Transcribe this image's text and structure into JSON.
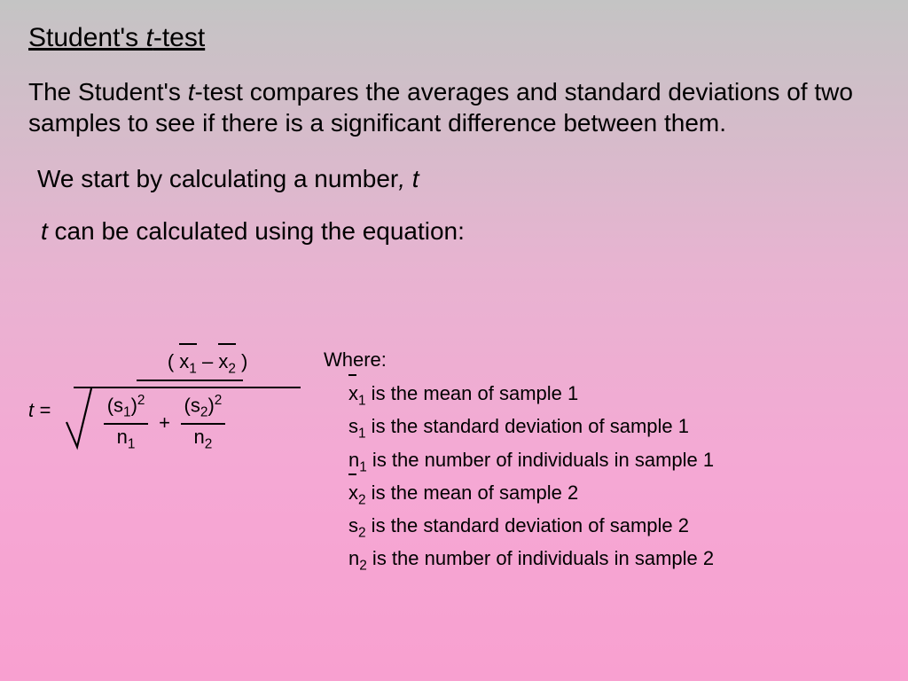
{
  "title": {
    "prefix": "Student's ",
    "ital": "t",
    "suffix": "-test"
  },
  "paragraph1": {
    "p1a": "The Student's ",
    "p1b": "t",
    "p1c": "-test compares the averages and standard deviations of two samples to see if there is a significant difference between them."
  },
  "paragraph2": {
    "p2a": "We start by calculating a number",
    "p2b": ", t"
  },
  "paragraph3": {
    "p3a": "t",
    "p3b": " can be calculated using the equation:"
  },
  "formula": {
    "teq": "t =",
    "lparen": "( ",
    "x1": "x",
    "sub1": "1",
    "minus": " – ",
    "x2": "x",
    "sub2": "2",
    "rparen": " )",
    "s1sq_top": "(s",
    "s1sq_sub": "1",
    "s1sq_close": ")",
    "s1sq_sup": "2",
    "n1": "n",
    "n1sub": "1",
    "plus": "+",
    "s2sq_top": "(s",
    "s2sq_sub": "2",
    "s2sq_close": ")",
    "s2sq_sup": "2",
    "n2": "n",
    "n2sub": "2"
  },
  "where": {
    "label": "Where:",
    "defs": [
      {
        "var_base": "x",
        "var_sub": "1",
        "has_bar": true,
        "text": " is the mean of sample 1"
      },
      {
        "var_base": "s",
        "var_sub": "1",
        "has_bar": false,
        "text": " is the standard deviation of sample 1"
      },
      {
        "var_base": "n",
        "var_sub": "1",
        "has_bar": false,
        "text": " is the number of individuals in sample 1"
      },
      {
        "var_base": "x",
        "var_sub": "2",
        "has_bar": true,
        "text": " is the mean of sample 2"
      },
      {
        "var_base": "s",
        "var_sub": "2",
        "has_bar": false,
        "text": " is the standard deviation of sample 2"
      },
      {
        "var_base": "n",
        "var_sub": "2",
        "has_bar": false,
        "text": " is the number of individuals in sample 2"
      }
    ]
  },
  "colors": {
    "text": "#000000",
    "bg_top": "#c4c4c4",
    "bg_bottom": "#f8a0d0"
  },
  "typography": {
    "title_fontsize": 30,
    "body_fontsize": 28,
    "formula_fontsize": 22,
    "where_fontsize": 22,
    "font_family": "Arial"
  }
}
